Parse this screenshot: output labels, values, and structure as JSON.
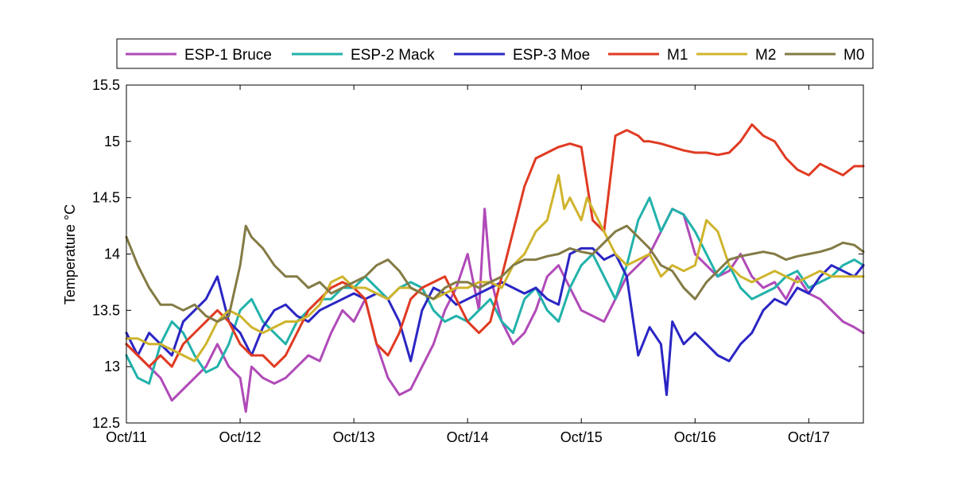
{
  "chart_data": {
    "type": "line",
    "ylabel": "Temperature °C",
    "xlabel": "",
    "xlim": [
      "Oct/11",
      "Oct/17"
    ],
    "ylim": [
      12.5,
      15.5
    ],
    "x_tick_labels": [
      "Oct/11",
      "Oct/12",
      "Oct/13",
      "Oct/14",
      "Oct/15",
      "Oct/16",
      "Oct/17"
    ],
    "y_tick_labels": [
      "12.5",
      "13",
      "13.5",
      "14",
      "14.5",
      "15",
      "15.5"
    ],
    "grid": false,
    "legend_position": "top",
    "series": [
      {
        "name": "ESP-1 Bruce",
        "color": "#b04ab8",
        "x": [
          0.0,
          0.1,
          0.2,
          0.3,
          0.4,
          0.5,
          0.6,
          0.7,
          0.8,
          0.9,
          1.0,
          1.05,
          1.1,
          1.2,
          1.3,
          1.4,
          1.5,
          1.6,
          1.7,
          1.8,
          1.9,
          2.0,
          2.1,
          2.2,
          2.3,
          2.4,
          2.5,
          2.6,
          2.7,
          2.8,
          2.9,
          3.0,
          3.1,
          3.15,
          3.2,
          3.3,
          3.4,
          3.5,
          3.6,
          3.7,
          3.8,
          3.9,
          4.0,
          4.1,
          4.2,
          4.3,
          4.4,
          4.5,
          4.6,
          4.7,
          4.8,
          4.9,
          5.0,
          5.1,
          5.2,
          5.3,
          5.4,
          5.5,
          5.6,
          5.7,
          5.8,
          5.9,
          6.0,
          6.1,
          6.2,
          6.3,
          6.4,
          6.48
        ],
        "y": [
          13.2,
          13.1,
          13.0,
          12.9,
          12.7,
          12.8,
          12.9,
          13.0,
          13.2,
          13.0,
          12.9,
          12.6,
          13.0,
          12.9,
          12.85,
          12.9,
          13.0,
          13.1,
          13.05,
          13.3,
          13.5,
          13.4,
          13.6,
          13.2,
          12.9,
          12.75,
          12.8,
          13.0,
          13.2,
          13.5,
          13.7,
          14.0,
          13.5,
          14.4,
          13.8,
          13.4,
          13.2,
          13.3,
          13.5,
          13.8,
          13.9,
          13.7,
          13.5,
          13.45,
          13.4,
          13.6,
          13.8,
          13.9,
          14.0,
          14.2,
          14.4,
          14.35,
          14.0,
          13.9,
          13.8,
          13.85,
          14.0,
          13.8,
          13.7,
          13.75,
          13.6,
          13.8,
          13.65,
          13.6,
          13.5,
          13.4,
          13.35,
          13.3
        ]
      },
      {
        "name": "ESP-2 Mack",
        "color": "#21b2aa",
        "x": [
          0.0,
          0.1,
          0.2,
          0.3,
          0.4,
          0.5,
          0.6,
          0.7,
          0.8,
          0.9,
          1.0,
          1.1,
          1.2,
          1.3,
          1.4,
          1.5,
          1.6,
          1.7,
          1.8,
          1.9,
          2.0,
          2.1,
          2.2,
          2.3,
          2.4,
          2.5,
          2.6,
          2.7,
          2.8,
          2.9,
          3.0,
          3.1,
          3.2,
          3.3,
          3.4,
          3.5,
          3.6,
          3.7,
          3.8,
          3.9,
          4.0,
          4.1,
          4.2,
          4.3,
          4.4,
          4.5,
          4.6,
          4.7,
          4.8,
          4.9,
          5.0,
          5.1,
          5.2,
          5.3,
          5.4,
          5.5,
          5.6,
          5.7,
          5.8,
          5.9,
          6.0,
          6.1,
          6.2,
          6.3,
          6.4,
          6.48
        ],
        "y": [
          13.1,
          12.9,
          12.85,
          13.2,
          13.4,
          13.3,
          13.1,
          12.95,
          13.0,
          13.2,
          13.5,
          13.6,
          13.4,
          13.3,
          13.2,
          13.4,
          13.5,
          13.6,
          13.6,
          13.7,
          13.7,
          13.8,
          13.7,
          13.6,
          13.7,
          13.75,
          13.7,
          13.5,
          13.4,
          13.45,
          13.4,
          13.5,
          13.6,
          13.4,
          13.3,
          13.6,
          13.7,
          13.5,
          13.4,
          13.7,
          13.9,
          14.0,
          13.8,
          13.6,
          13.9,
          14.3,
          14.5,
          14.2,
          14.4,
          14.35,
          14.2,
          14.0,
          13.8,
          13.9,
          13.7,
          13.6,
          13.65,
          13.7,
          13.8,
          13.85,
          13.7,
          13.75,
          13.8,
          13.9,
          13.95,
          13.9
        ]
      },
      {
        "name": "ESP-3 Moe",
        "color": "#2a26c4",
        "x": [
          0.0,
          0.1,
          0.2,
          0.3,
          0.4,
          0.5,
          0.6,
          0.7,
          0.8,
          0.9,
          1.0,
          1.1,
          1.2,
          1.3,
          1.4,
          1.5,
          1.6,
          1.7,
          1.8,
          1.9,
          2.0,
          2.1,
          2.2,
          2.3,
          2.4,
          2.5,
          2.6,
          2.7,
          2.8,
          2.9,
          3.0,
          3.1,
          3.2,
          3.3,
          3.4,
          3.5,
          3.6,
          3.7,
          3.8,
          3.9,
          4.0,
          4.1,
          4.2,
          4.3,
          4.4,
          4.5,
          4.6,
          4.7,
          4.75,
          4.8,
          4.9,
          5.0,
          5.1,
          5.2,
          5.3,
          5.4,
          5.5,
          5.6,
          5.7,
          5.8,
          5.9,
          6.0,
          6.1,
          6.2,
          6.3,
          6.4,
          6.48
        ],
        "y": [
          13.3,
          13.1,
          13.3,
          13.2,
          13.1,
          13.4,
          13.5,
          13.6,
          13.8,
          13.4,
          13.3,
          13.1,
          13.35,
          13.5,
          13.55,
          13.45,
          13.4,
          13.5,
          13.55,
          13.6,
          13.65,
          13.6,
          13.65,
          13.6,
          13.4,
          13.05,
          13.5,
          13.7,
          13.65,
          13.55,
          13.6,
          13.65,
          13.7,
          13.75,
          13.7,
          13.65,
          13.7,
          13.6,
          13.55,
          14.0,
          14.05,
          14.05,
          13.95,
          14.0,
          13.8,
          13.1,
          13.35,
          13.2,
          12.75,
          13.4,
          13.2,
          13.3,
          13.2,
          13.1,
          13.05,
          13.2,
          13.3,
          13.5,
          13.6,
          13.55,
          13.7,
          13.65,
          13.8,
          13.9,
          13.85,
          13.8,
          13.9
        ]
      },
      {
        "name": "M1",
        "color": "#e03a22",
        "x": [
          0.0,
          0.1,
          0.2,
          0.3,
          0.4,
          0.5,
          0.6,
          0.7,
          0.8,
          0.9,
          1.0,
          1.1,
          1.2,
          1.3,
          1.4,
          1.5,
          1.6,
          1.7,
          1.8,
          1.9,
          2.0,
          2.1,
          2.2,
          2.3,
          2.4,
          2.5,
          2.6,
          2.7,
          2.8,
          2.9,
          3.0,
          3.1,
          3.2,
          3.3,
          3.4,
          3.5,
          3.6,
          3.7,
          3.8,
          3.9,
          4.0,
          4.1,
          4.2,
          4.3,
          4.4,
          4.5,
          4.55,
          4.6,
          4.7,
          4.8,
          4.9,
          5.0,
          5.1,
          5.2,
          5.3,
          5.4,
          5.5,
          5.6,
          5.7,
          5.8,
          5.9,
          6.0,
          6.1,
          6.2,
          6.3,
          6.4,
          6.48
        ],
        "y": [
          13.2,
          13.1,
          13.0,
          13.1,
          13.0,
          13.2,
          13.3,
          13.4,
          13.5,
          13.4,
          13.2,
          13.1,
          13.1,
          13.0,
          13.1,
          13.3,
          13.5,
          13.6,
          13.7,
          13.75,
          13.7,
          13.6,
          13.2,
          13.1,
          13.3,
          13.6,
          13.7,
          13.75,
          13.8,
          13.6,
          13.4,
          13.3,
          13.4,
          13.8,
          14.2,
          14.6,
          14.85,
          14.9,
          14.95,
          14.98,
          14.95,
          14.3,
          14.2,
          15.05,
          15.1,
          15.05,
          15.0,
          15.0,
          14.98,
          14.95,
          14.92,
          14.9,
          14.9,
          14.88,
          14.9,
          15.0,
          15.15,
          15.05,
          15.0,
          14.85,
          14.75,
          14.7,
          14.8,
          14.75,
          14.7,
          14.78,
          14.78
        ]
      },
      {
        "name": "M2",
        "color": "#cfb42c",
        "x": [
          0.0,
          0.1,
          0.2,
          0.3,
          0.4,
          0.5,
          0.6,
          0.7,
          0.8,
          0.9,
          1.0,
          1.1,
          1.2,
          1.3,
          1.4,
          1.5,
          1.6,
          1.7,
          1.8,
          1.9,
          2.0,
          2.1,
          2.2,
          2.3,
          2.4,
          2.5,
          2.6,
          2.7,
          2.8,
          2.9,
          3.0,
          3.1,
          3.2,
          3.3,
          3.4,
          3.5,
          3.6,
          3.7,
          3.8,
          3.85,
          3.9,
          4.0,
          4.05,
          4.1,
          4.2,
          4.3,
          4.4,
          4.5,
          4.6,
          4.7,
          4.8,
          4.9,
          5.0,
          5.1,
          5.2,
          5.3,
          5.4,
          5.5,
          5.6,
          5.7,
          5.8,
          5.9,
          6.0,
          6.1,
          6.2,
          6.3,
          6.4,
          6.48
        ],
        "y": [
          13.25,
          13.25,
          13.2,
          13.2,
          13.15,
          13.1,
          13.05,
          13.2,
          13.4,
          13.5,
          13.45,
          13.35,
          13.3,
          13.35,
          13.4,
          13.4,
          13.45,
          13.55,
          13.75,
          13.8,
          13.7,
          13.7,
          13.65,
          13.6,
          13.7,
          13.7,
          13.65,
          13.6,
          13.65,
          13.7,
          13.7,
          13.75,
          13.75,
          13.7,
          13.9,
          14.0,
          14.2,
          14.3,
          14.7,
          14.4,
          14.5,
          14.3,
          14.5,
          14.4,
          14.2,
          14.0,
          13.9,
          13.95,
          14.0,
          13.8,
          13.9,
          13.85,
          13.9,
          14.3,
          14.2,
          13.9,
          13.8,
          13.75,
          13.8,
          13.85,
          13.8,
          13.75,
          13.8,
          13.85,
          13.8,
          13.8,
          13.8,
          13.8
        ]
      },
      {
        "name": "M0",
        "color": "#837b45",
        "x": [
          0.0,
          0.1,
          0.2,
          0.3,
          0.4,
          0.5,
          0.6,
          0.7,
          0.8,
          0.9,
          1.0,
          1.05,
          1.1,
          1.2,
          1.3,
          1.4,
          1.5,
          1.6,
          1.7,
          1.8,
          1.9,
          2.0,
          2.1,
          2.2,
          2.3,
          2.4,
          2.5,
          2.6,
          2.7,
          2.8,
          2.9,
          3.0,
          3.1,
          3.2,
          3.3,
          3.4,
          3.5,
          3.6,
          3.7,
          3.8,
          3.9,
          4.0,
          4.1,
          4.2,
          4.3,
          4.4,
          4.5,
          4.6,
          4.7,
          4.8,
          4.9,
          5.0,
          5.1,
          5.2,
          5.3,
          5.4,
          5.5,
          5.6,
          5.7,
          5.8,
          5.9,
          6.0,
          6.1,
          6.2,
          6.3,
          6.4,
          6.48
        ],
        "y": [
          14.15,
          13.9,
          13.7,
          13.55,
          13.55,
          13.5,
          13.55,
          13.45,
          13.4,
          13.45,
          13.9,
          14.25,
          14.15,
          14.05,
          13.9,
          13.8,
          13.8,
          13.7,
          13.75,
          13.65,
          13.7,
          13.75,
          13.8,
          13.9,
          13.95,
          13.85,
          13.7,
          13.65,
          13.6,
          13.7,
          13.75,
          13.75,
          13.7,
          13.75,
          13.8,
          13.9,
          13.95,
          13.95,
          13.98,
          14.0,
          14.05,
          14.02,
          14.0,
          14.1,
          14.2,
          14.25,
          14.15,
          14.05,
          13.9,
          13.85,
          13.7,
          13.6,
          13.75,
          13.85,
          13.95,
          13.98,
          14.0,
          14.02,
          14.0,
          13.95,
          13.98,
          14.0,
          14.02,
          14.05,
          14.1,
          14.08,
          14.02
        ]
      }
    ]
  }
}
